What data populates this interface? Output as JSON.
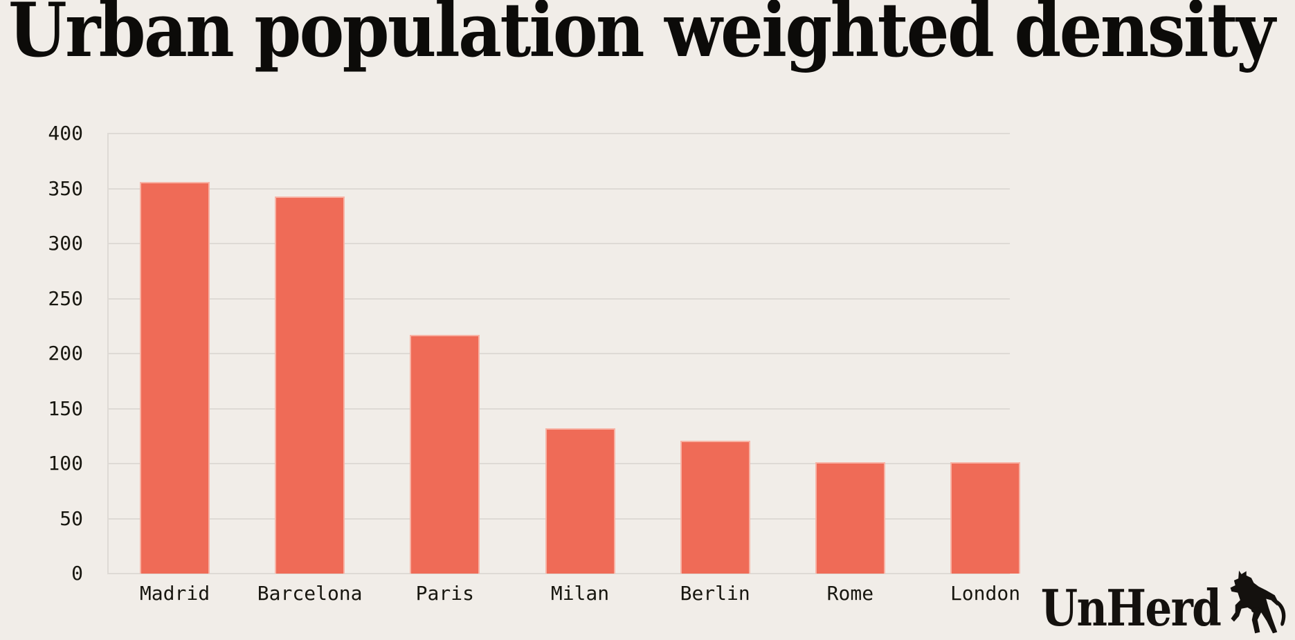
{
  "chart_data": {
    "type": "bar",
    "title": "Urban population weighted density",
    "categories": [
      "Madrid",
      "Barcelona",
      "Paris",
      "Milan",
      "Berlin",
      "Rome",
      "London"
    ],
    "values": [
      356,
      343,
      217,
      132,
      121,
      101,
      101
    ],
    "xlabel": "",
    "ylabel": "",
    "ylim": [
      0,
      400
    ],
    "yticks": [
      0,
      50,
      100,
      150,
      200,
      250,
      300,
      350,
      400
    ],
    "grid": true,
    "legend": false,
    "bar_color": "#ef6b57",
    "background_color": "#f1ede8",
    "gridline_color": "#dedad5",
    "label_color": "#17160f"
  },
  "brand": {
    "logo_text": "UnHerd",
    "logo_icon": "rearing-cow-icon"
  }
}
